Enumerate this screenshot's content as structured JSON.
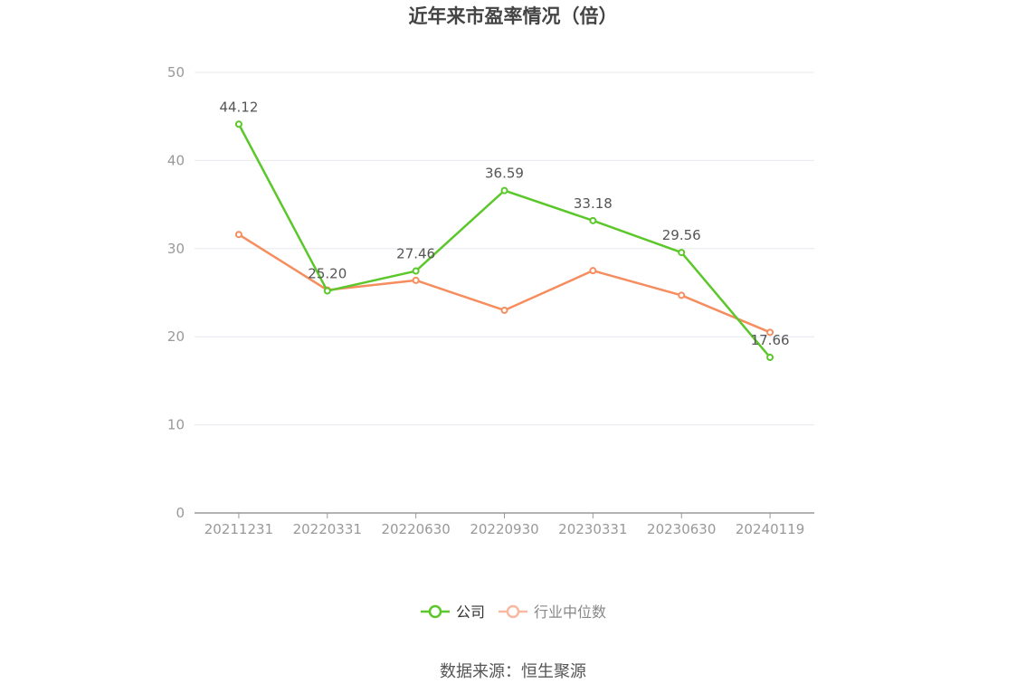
{
  "title": "近年来市盈率情况（倍）",
  "source": "数据来源：恒生聚源",
  "chart_data": {
    "type": "line",
    "categories": [
      "20211231",
      "20220331",
      "20220630",
      "20220930",
      "20230331",
      "20230630",
      "20240119"
    ],
    "ylim": [
      0,
      50
    ],
    "yticks": [
      0,
      10,
      20,
      30,
      40,
      50
    ],
    "grid": true,
    "legend_position": "bottom",
    "series": [
      {
        "name": "公司",
        "color": "#5bc72a",
        "values": [
          44.12,
          25.2,
          27.46,
          36.59,
          33.18,
          29.56,
          17.66
        ],
        "labels": [
          "44.12",
          "25.20",
          "27.46",
          "36.59",
          "33.18",
          "29.56",
          "17.66"
        ]
      },
      {
        "name": "行业中位数",
        "color": "#f58d5e",
        "legend_color": "#f9b9a0",
        "values": [
          31.6,
          25.3,
          26.4,
          23.0,
          27.5,
          24.7,
          20.5
        ]
      }
    ]
  }
}
